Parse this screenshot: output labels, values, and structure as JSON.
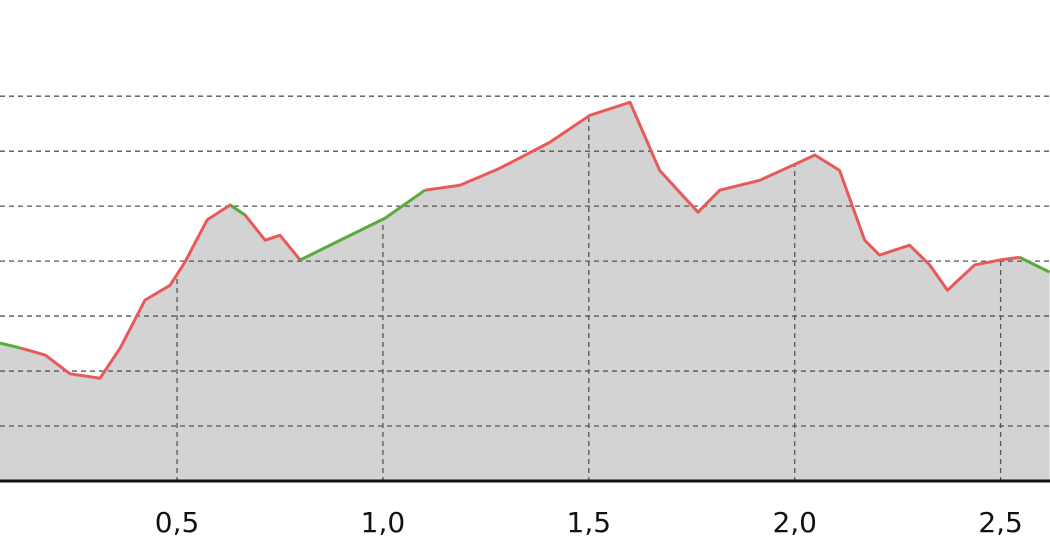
{
  "chart_data": {
    "type": "line",
    "x": [
      0.07,
      0.119,
      0.18,
      0.24,
      0.313,
      0.362,
      0.422,
      0.483,
      0.519,
      0.573,
      0.629,
      0.665,
      0.714,
      0.75,
      0.799,
      0.896,
      1.005,
      1.102,
      1.187,
      1.284,
      1.405,
      1.502,
      1.6,
      1.672,
      1.765,
      1.818,
      1.915,
      2.012,
      2.049,
      2.109,
      2.17,
      2.206,
      2.279,
      2.328,
      2.371,
      2.437,
      2.498,
      2.546,
      2.619
    ],
    "series": [
      {
        "color": "#e85a5a",
        "values": [
          null,
          2.42,
          2.29,
          1.95,
          1.87,
          2.42,
          3.29,
          3.56,
          3.98,
          4.75,
          5.02,
          4.84,
          4.38,
          4.47,
          4.02,
          null,
          null,
          5.29,
          5.38,
          5.69,
          6.16,
          6.65,
          6.89,
          5.65,
          4.89,
          5.29,
          5.47,
          5.8,
          5.93,
          5.65,
          4.38,
          4.11,
          4.29,
          3.93,
          3.47,
          3.93,
          4.02,
          4.07,
          null
        ]
      },
      {
        "color": "#5aaa3c",
        "values": [
          2.51,
          2.42,
          null,
          null,
          null,
          null,
          null,
          null,
          null,
          null,
          5.02,
          4.84,
          null,
          null,
          4.02,
          4.38,
          4.78,
          5.29,
          null,
          null,
          null,
          null,
          null,
          null,
          null,
          null,
          null,
          null,
          null,
          null,
          null,
          null,
          null,
          null,
          null,
          null,
          null,
          4.07,
          3.8
        ]
      }
    ],
    "area_color": "#d3d3d3",
    "xlim": [
      0.07,
      2.62
    ],
    "ylim": [
      0,
      8.75
    ],
    "xticks": [
      {
        "value": 0.5,
        "label": "0,5"
      },
      {
        "value": 1.0,
        "label": "1,0"
      },
      {
        "value": 1.5,
        "label": "1,5"
      },
      {
        "value": 2.0,
        "label": "2,0"
      },
      {
        "value": 2.5,
        "label": "2,5"
      }
    ],
    "yticks": [
      1,
      2,
      3,
      4,
      5,
      6,
      7
    ],
    "grid": true
  }
}
